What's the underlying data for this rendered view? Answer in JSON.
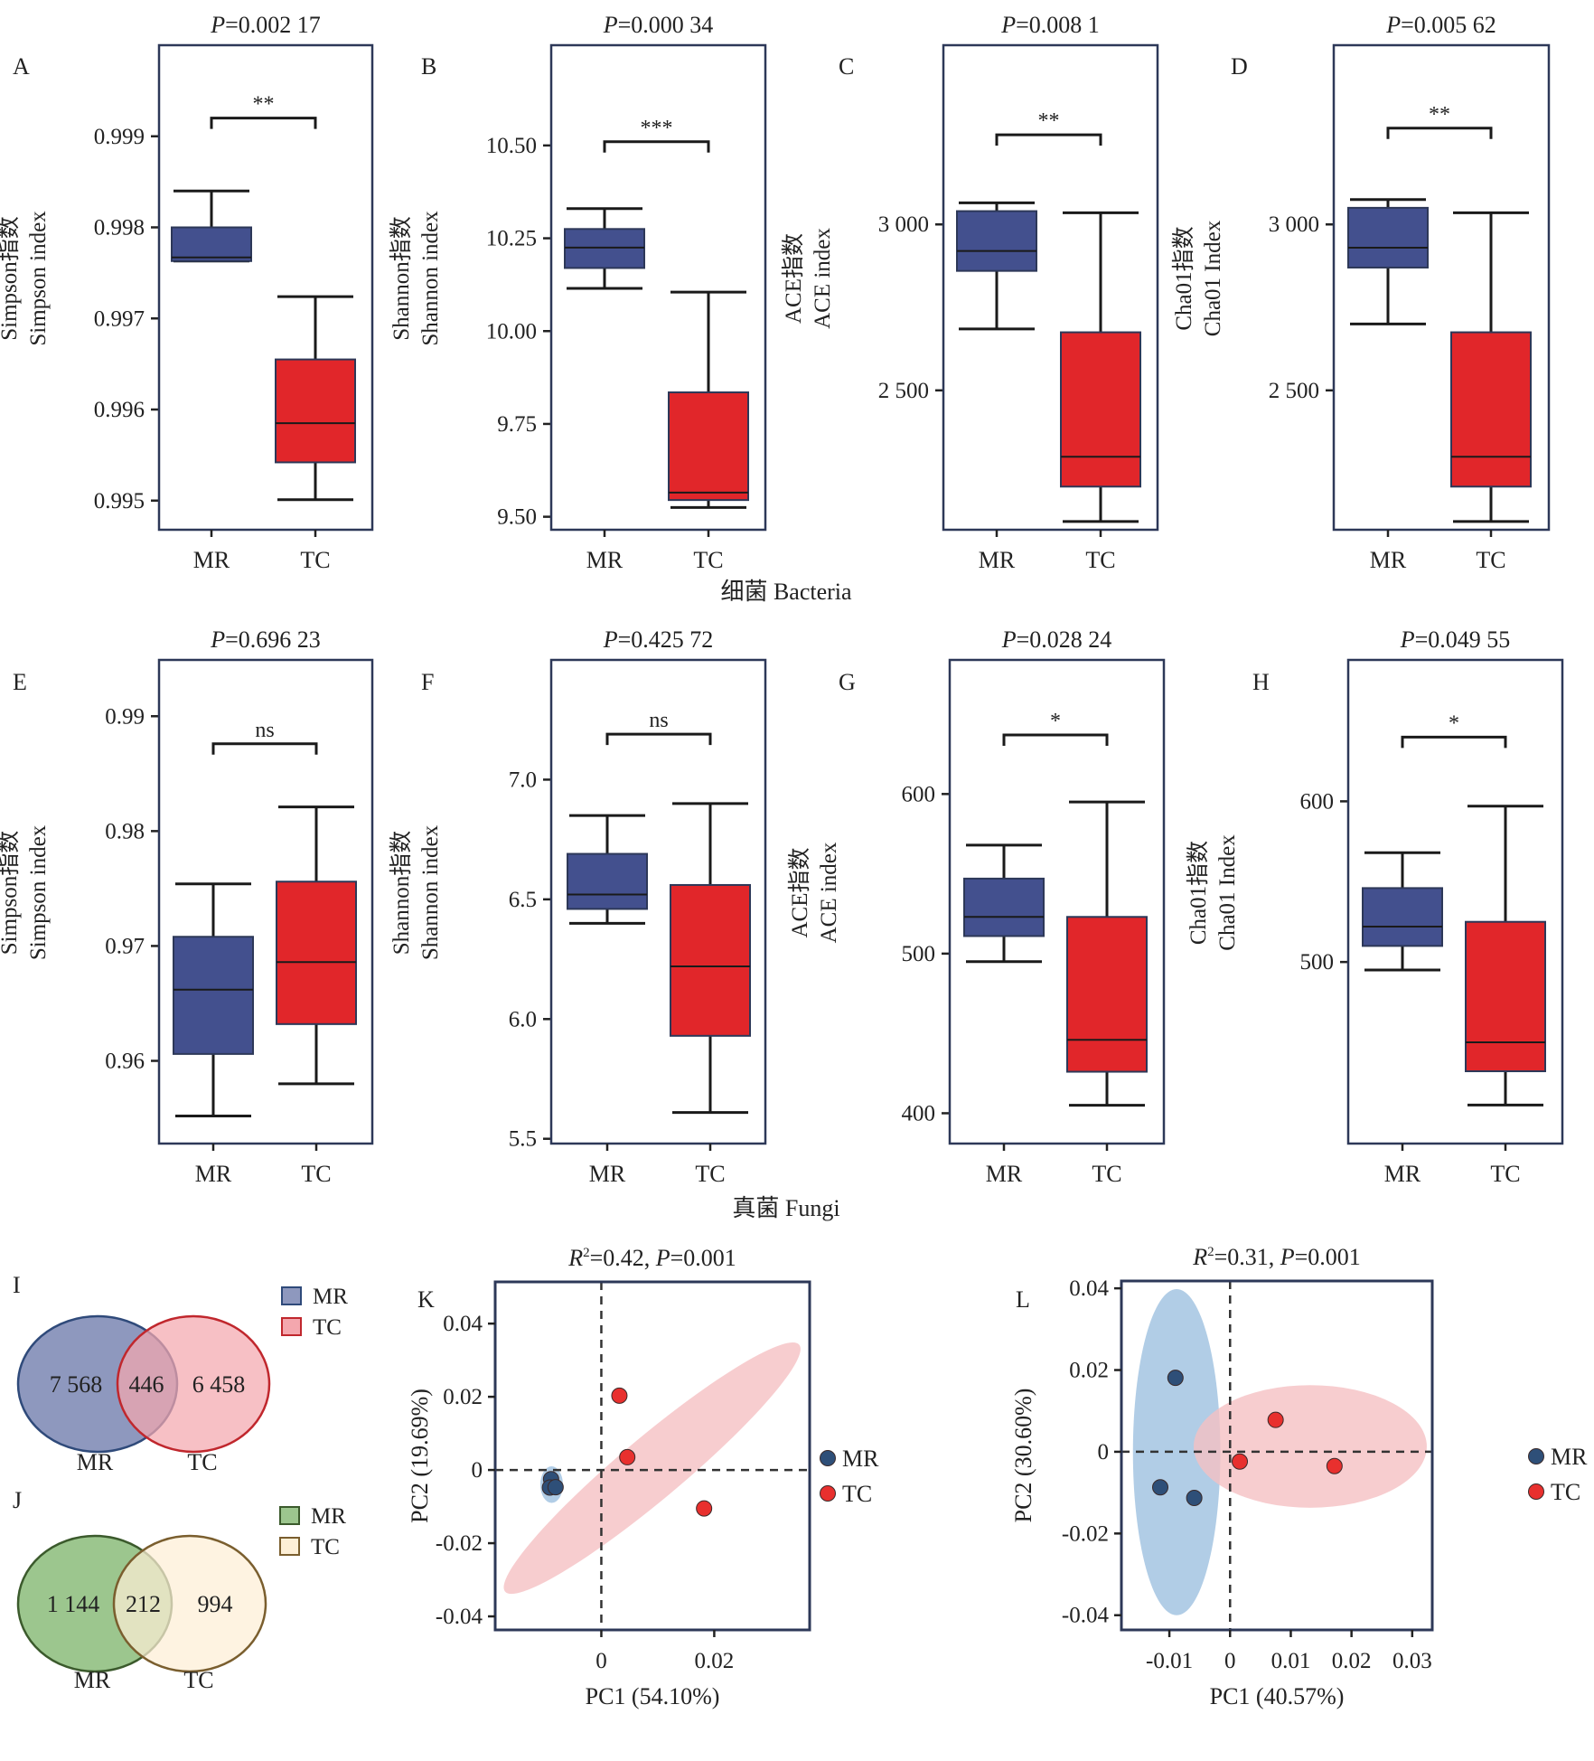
{
  "figure": {
    "section_labels": {
      "bacteria": "细菌 Bacteria",
      "fungi": "真菌 Fungi"
    },
    "colors": {
      "mr_box": "#43508E",
      "tc_box": "#E1262A",
      "frame": "#2D3858",
      "mr_point": "#2E4F78",
      "tc_point": "#E8302E",
      "mr_ellipse": "#A9C8E3",
      "tc_ellipse": "#F5C0C3"
    }
  },
  "chart_data": [
    {
      "id": "A",
      "type": "box",
      "panel_label": "A",
      "title_prefix": "P",
      "title_value": "=0.002 17",
      "ylabel_line1": "Simpson指数",
      "ylabel_line2": "Simpson index",
      "categories": [
        "MR",
        "TC"
      ],
      "ylim": [
        0.99468,
        1.0
      ],
      "yticks": [
        0.995,
        0.996,
        0.997,
        0.998,
        0.999
      ],
      "yticklabels": [
        "0.995",
        "0.996",
        "0.997",
        "0.998",
        "0.999"
      ],
      "boxes": [
        {
          "group": "MR",
          "min": 0.99763,
          "q1": 0.99763,
          "median": 0.99767,
          "q3": 0.998,
          "max": 0.9984
        },
        {
          "group": "TC",
          "min": 0.99501,
          "q1": 0.99542,
          "median": 0.99585,
          "q3": 0.99655,
          "max": 0.99724
        }
      ],
      "significance": "**",
      "bracket_y": 0.9992
    },
    {
      "id": "B",
      "type": "box",
      "panel_label": "B",
      "title_prefix": "P",
      "title_value": "=0.000 34",
      "ylabel_line1": "Shannon指数",
      "ylabel_line2": "Shannon index",
      "categories": [
        "MR",
        "TC"
      ],
      "ylim": [
        9.465,
        10.77
      ],
      "yticks": [
        9.5,
        9.75,
        10.0,
        10.25,
        10.5
      ],
      "yticklabels": [
        "9.50",
        "9.75",
        "10.00",
        "10.25",
        "10.50"
      ],
      "boxes": [
        {
          "group": "MR",
          "min": 10.115,
          "q1": 10.17,
          "median": 10.225,
          "q3": 10.275,
          "max": 10.33
        },
        {
          "group": "TC",
          "min": 9.525,
          "q1": 9.545,
          "median": 9.565,
          "q3": 9.835,
          "max": 10.105
        }
      ],
      "significance": "***",
      "bracket_y": 10.51
    },
    {
      "id": "C",
      "type": "box",
      "panel_label": "C",
      "title_prefix": "P",
      "title_value": "=0.008 1",
      "ylabel_line1": "ACE指数",
      "ylabel_line2": "ACE index",
      "categories": [
        "MR",
        "TC"
      ],
      "ylim": [
        2080,
        3540
      ],
      "yticks": [
        2500,
        3000
      ],
      "yticklabels": [
        "2 500",
        "3 000"
      ],
      "boxes": [
        {
          "group": "MR",
          "min": 2685,
          "q1": 2860,
          "median": 2920,
          "q3": 3040,
          "max": 3065
        },
        {
          "group": "TC",
          "min": 2105,
          "q1": 2210,
          "median": 2300,
          "q3": 2675,
          "max": 3035
        }
      ],
      "significance": "**",
      "bracket_y": 3270
    },
    {
      "id": "D",
      "type": "box",
      "panel_label": "D",
      "title_prefix": "P",
      "title_value": "=0.005 62",
      "ylabel_line1": "Cha01指数",
      "ylabel_line2": "Cha01 Index",
      "categories": [
        "MR",
        "TC"
      ],
      "ylim": [
        2080,
        3540
      ],
      "yticks": [
        2500,
        3000
      ],
      "yticklabels": [
        "2 500",
        "3 000"
      ],
      "boxes": [
        {
          "group": "MR",
          "min": 2700,
          "q1": 2870,
          "median": 2930,
          "q3": 3050,
          "max": 3075
        },
        {
          "group": "TC",
          "min": 2105,
          "q1": 2210,
          "median": 2300,
          "q3": 2675,
          "max": 3035
        }
      ],
      "significance": "**",
      "bracket_y": 3290
    },
    {
      "id": "E",
      "type": "box",
      "panel_label": "E",
      "title_prefix": "P",
      "title_value": "=0.696 23",
      "ylabel_line1": "Simpson指数",
      "ylabel_line2": "Simpson index",
      "categories": [
        "MR",
        "TC"
      ],
      "ylim": [
        0.9528,
        0.9949
      ],
      "yticks": [
        0.96,
        0.97,
        0.98,
        0.99
      ],
      "yticklabels": [
        "0.96",
        "0.97",
        "0.98",
        "0.99"
      ],
      "boxes": [
        {
          "group": "MR",
          "min": 0.9552,
          "q1": 0.9606,
          "median": 0.9662,
          "q3": 0.9708,
          "max": 0.9754
        },
        {
          "group": "TC",
          "min": 0.958,
          "q1": 0.9632,
          "median": 0.9686,
          "q3": 0.9756,
          "max": 0.9821
        }
      ],
      "significance": "ns",
      "bracket_y": 0.9876
    },
    {
      "id": "F",
      "type": "box",
      "panel_label": "F",
      "title_prefix": "P",
      "title_value": "=0.425 72",
      "ylabel_line1": "Shannon指数",
      "ylabel_line2": "Shannon index",
      "categories": [
        "MR",
        "TC"
      ],
      "ylim": [
        5.48,
        7.5
      ],
      "yticks": [
        5.5,
        6.0,
        6.5,
        7.0
      ],
      "yticklabels": [
        "5.5",
        "6.0",
        "6.5",
        "7.0"
      ],
      "boxes": [
        {
          "group": "MR",
          "min": 6.4,
          "q1": 6.46,
          "median": 6.52,
          "q3": 6.69,
          "max": 6.85
        },
        {
          "group": "TC",
          "min": 5.61,
          "q1": 5.93,
          "median": 6.22,
          "q3": 6.56,
          "max": 6.9
        }
      ],
      "significance": "ns",
      "bracket_y": 7.19
    },
    {
      "id": "G",
      "type": "box",
      "panel_label": "G",
      "title_prefix": "P",
      "title_value": "=0.028 24",
      "ylabel_line1": "ACE指数",
      "ylabel_line2": "ACE index",
      "categories": [
        "MR",
        "TC"
      ],
      "ylim": [
        381,
        684
      ],
      "yticks": [
        400,
        500,
        600
      ],
      "yticklabels": [
        "400",
        "500",
        "600"
      ],
      "boxes": [
        {
          "group": "MR",
          "min": 495,
          "q1": 511,
          "median": 523,
          "q3": 547,
          "max": 568
        },
        {
          "group": "TC",
          "min": 405,
          "q1": 426,
          "median": 446,
          "q3": 523,
          "max": 595
        }
      ],
      "significance": "*",
      "bracket_y": 637
    },
    {
      "id": "H",
      "type": "box",
      "panel_label": "H",
      "title_prefix": "P",
      "title_value": "=0.049 55",
      "ylabel_line1": "Cha01指数",
      "ylabel_line2": "Cha01 Index",
      "categories": [
        "MR",
        "TC"
      ],
      "ylim": [
        387,
        688
      ],
      "yticks": [
        500,
        600
      ],
      "yticklabels": [
        "500",
        "600"
      ],
      "boxes": [
        {
          "group": "MR",
          "min": 495,
          "q1": 510,
          "median": 522,
          "q3": 546,
          "max": 568
        },
        {
          "group": "TC",
          "min": 411,
          "q1": 432,
          "median": 450,
          "q3": 525,
          "max": 597
        }
      ],
      "significance": "*",
      "bracket_y": 640
    },
    {
      "id": "I",
      "type": "venn",
      "panel_label": "I",
      "sets": [
        "MR",
        "TC"
      ],
      "only_a": "7 568",
      "shared": "446",
      "only_b": "6 458",
      "legend": [
        "MR",
        "TC"
      ],
      "colors": {
        "a_fill": "#8E98BE",
        "a_stroke": "#2F4A7A",
        "b_fill": "#F4A7AE",
        "b_stroke": "#C0272D"
      }
    },
    {
      "id": "J",
      "type": "venn",
      "panel_label": "J",
      "sets": [
        "MR",
        "TC"
      ],
      "only_a": "1 144",
      "shared": "212",
      "only_b": "994",
      "legend": [
        "MR",
        "TC"
      ],
      "colors": {
        "a_fill": "#9CC68E",
        "a_stroke": "#3B5A2C",
        "b_fill": "#FDEFD6",
        "b_stroke": "#7A5E2E"
      }
    },
    {
      "id": "K",
      "type": "scatter",
      "panel_label": "K",
      "title_r": "R",
      "title_sup": "2",
      "title_rest1": "=0.42, ",
      "title_p": "P",
      "title_rest2": "=0.001",
      "xlabel": "PC1 (54.10%)",
      "ylabel": "PC2 (19.69%)",
      "xlim": [
        -0.0188,
        0.0369
      ],
      "ylim": [
        -0.0437,
        0.0514
      ],
      "xticks": [
        0,
        0.02
      ],
      "xticklabels": [
        "0",
        "0.02"
      ],
      "yticks": [
        -0.04,
        -0.02,
        0,
        0.02,
        0.04
      ],
      "yticklabels": [
        "-0.04",
        "-0.02",
        "0",
        "0.02",
        "0.04"
      ],
      "legend": [
        "MR",
        "TC"
      ],
      "series": [
        {
          "name": "MR",
          "points": [
            [
              -0.0089,
              -0.0025
            ],
            [
              -0.0091,
              -0.0048
            ],
            [
              -0.0081,
              -0.0047
            ]
          ],
          "ellipse": {
            "cx": -0.0088,
            "cy": -0.004,
            "rx": 0.002,
            "ry": 0.005,
            "angle": 0
          }
        },
        {
          "name": "TC",
          "points": [
            [
              0.0032,
              0.0203
            ],
            [
              0.0046,
              0.0035
            ],
            [
              0.0182,
              -0.0105
            ]
          ],
          "ellipse": {
            "cx": 0.009,
            "cy": 0.0005,
            "rx": 0.034,
            "ry": 0.0085,
            "angle": -40
          }
        }
      ]
    },
    {
      "id": "L",
      "type": "scatter",
      "panel_label": "L",
      "title_r": "R",
      "title_sup": "2",
      "title_rest1": "=0.31, ",
      "title_p": "P",
      "title_rest2": "=0.001",
      "xlabel": "PC1 (40.57%)",
      "ylabel": "PC2 (30.60%)",
      "xlim": [
        -0.0179,
        0.0333
      ],
      "ylim": [
        -0.0436,
        0.0418
      ],
      "xticks": [
        -0.01,
        0,
        0.01,
        0.02,
        0.03
      ],
      "xticklabels": [
        "-0.01",
        "0",
        "0.01",
        "0.02",
        "0.03"
      ],
      "yticks": [
        -0.04,
        -0.02,
        0,
        0.02,
        0.04
      ],
      "yticklabels": [
        "-0.04",
        "-0.02",
        "0",
        "0.02",
        "0.04"
      ],
      "legend": [
        "MR",
        "TC"
      ],
      "series": [
        {
          "name": "MR",
          "points": [
            [
              -0.009,
              0.0181
            ],
            [
              -0.0115,
              -0.0087
            ],
            [
              -0.0059,
              -0.0113
            ]
          ],
          "ellipse": {
            "cx": -0.0088,
            "cy": -0.0001,
            "rx": 0.0072,
            "ry": 0.0399,
            "angle": 0
          }
        },
        {
          "name": "TC",
          "points": [
            [
              0.0016,
              -0.0024
            ],
            [
              0.0075,
              0.0078
            ],
            [
              0.0172,
              -0.0035
            ]
          ],
          "ellipse": {
            "cx": 0.0132,
            "cy": 0.0013,
            "rx": 0.0192,
            "ry": 0.015,
            "angle": 0
          }
        }
      ]
    }
  ]
}
